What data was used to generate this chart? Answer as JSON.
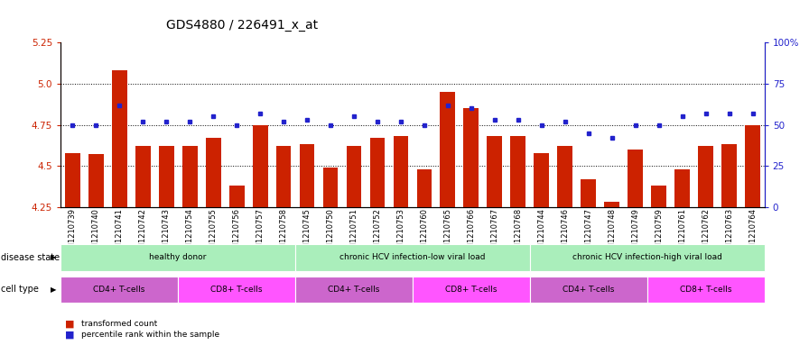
{
  "title": "GDS4880 / 226491_x_at",
  "samples": [
    "GSM1210739",
    "GSM1210740",
    "GSM1210741",
    "GSM1210742",
    "GSM1210743",
    "GSM1210754",
    "GSM1210755",
    "GSM1210756",
    "GSM1210757",
    "GSM1210758",
    "GSM1210745",
    "GSM1210750",
    "GSM1210751",
    "GSM1210752",
    "GSM1210753",
    "GSM1210760",
    "GSM1210765",
    "GSM1210766",
    "GSM1210767",
    "GSM1210768",
    "GSM1210744",
    "GSM1210746",
    "GSM1210747",
    "GSM1210748",
    "GSM1210749",
    "GSM1210759",
    "GSM1210761",
    "GSM1210762",
    "GSM1210763",
    "GSM1210764"
  ],
  "transformed_count": [
    4.58,
    4.57,
    5.08,
    4.62,
    4.62,
    4.62,
    4.67,
    4.38,
    4.75,
    4.62,
    4.63,
    4.49,
    4.62,
    4.67,
    4.68,
    4.48,
    4.95,
    4.85,
    4.68,
    4.68,
    4.58,
    4.62,
    4.42,
    4.28,
    4.6,
    4.38,
    4.48,
    4.62,
    4.63,
    4.75
  ],
  "percentile_rank": [
    50,
    50,
    62,
    52,
    52,
    52,
    55,
    50,
    57,
    52,
    53,
    50,
    55,
    52,
    52,
    50,
    62,
    60,
    53,
    53,
    50,
    52,
    45,
    42,
    50,
    50,
    55,
    57,
    57,
    57
  ],
  "bar_color": "#cc2200",
  "dot_color": "#2222cc",
  "ylim_left": [
    4.25,
    5.25
  ],
  "ylim_right": [
    0,
    100
  ],
  "yticks_left": [
    4.25,
    4.5,
    4.75,
    5.0,
    5.25
  ],
  "yticks_right": [
    0,
    25,
    50,
    75,
    100
  ],
  "grid_lines": [
    4.5,
    4.75,
    5.0
  ],
  "disease_state_groups": [
    {
      "label": "healthy donor",
      "start": 0,
      "end": 9
    },
    {
      "label": "chronic HCV infection-low viral load",
      "start": 10,
      "end": 19
    },
    {
      "label": "chronic HCV infection-high viral load",
      "start": 20,
      "end": 29
    }
  ],
  "cell_type_groups": [
    {
      "label": "CD4+ T-cells",
      "start": 0,
      "end": 4,
      "color": "#cc66cc"
    },
    {
      "label": "CD8+ T-cells",
      "start": 5,
      "end": 9,
      "color": "#ff55ff"
    },
    {
      "label": "CD4+ T-cells",
      "start": 10,
      "end": 14,
      "color": "#cc66cc"
    },
    {
      "label": "CD8+ T-cells",
      "start": 15,
      "end": 19,
      "color": "#ff55ff"
    },
    {
      "label": "CD4+ T-cells",
      "start": 20,
      "end": 24,
      "color": "#cc66cc"
    },
    {
      "label": "CD8+ T-cells",
      "start": 25,
      "end": 29,
      "color": "#ff55ff"
    }
  ],
  "ds_color": "#aaeebb",
  "background_color": "#ffffff",
  "title_fontsize": 10,
  "tick_fontsize": 6,
  "label_fontsize": 7
}
